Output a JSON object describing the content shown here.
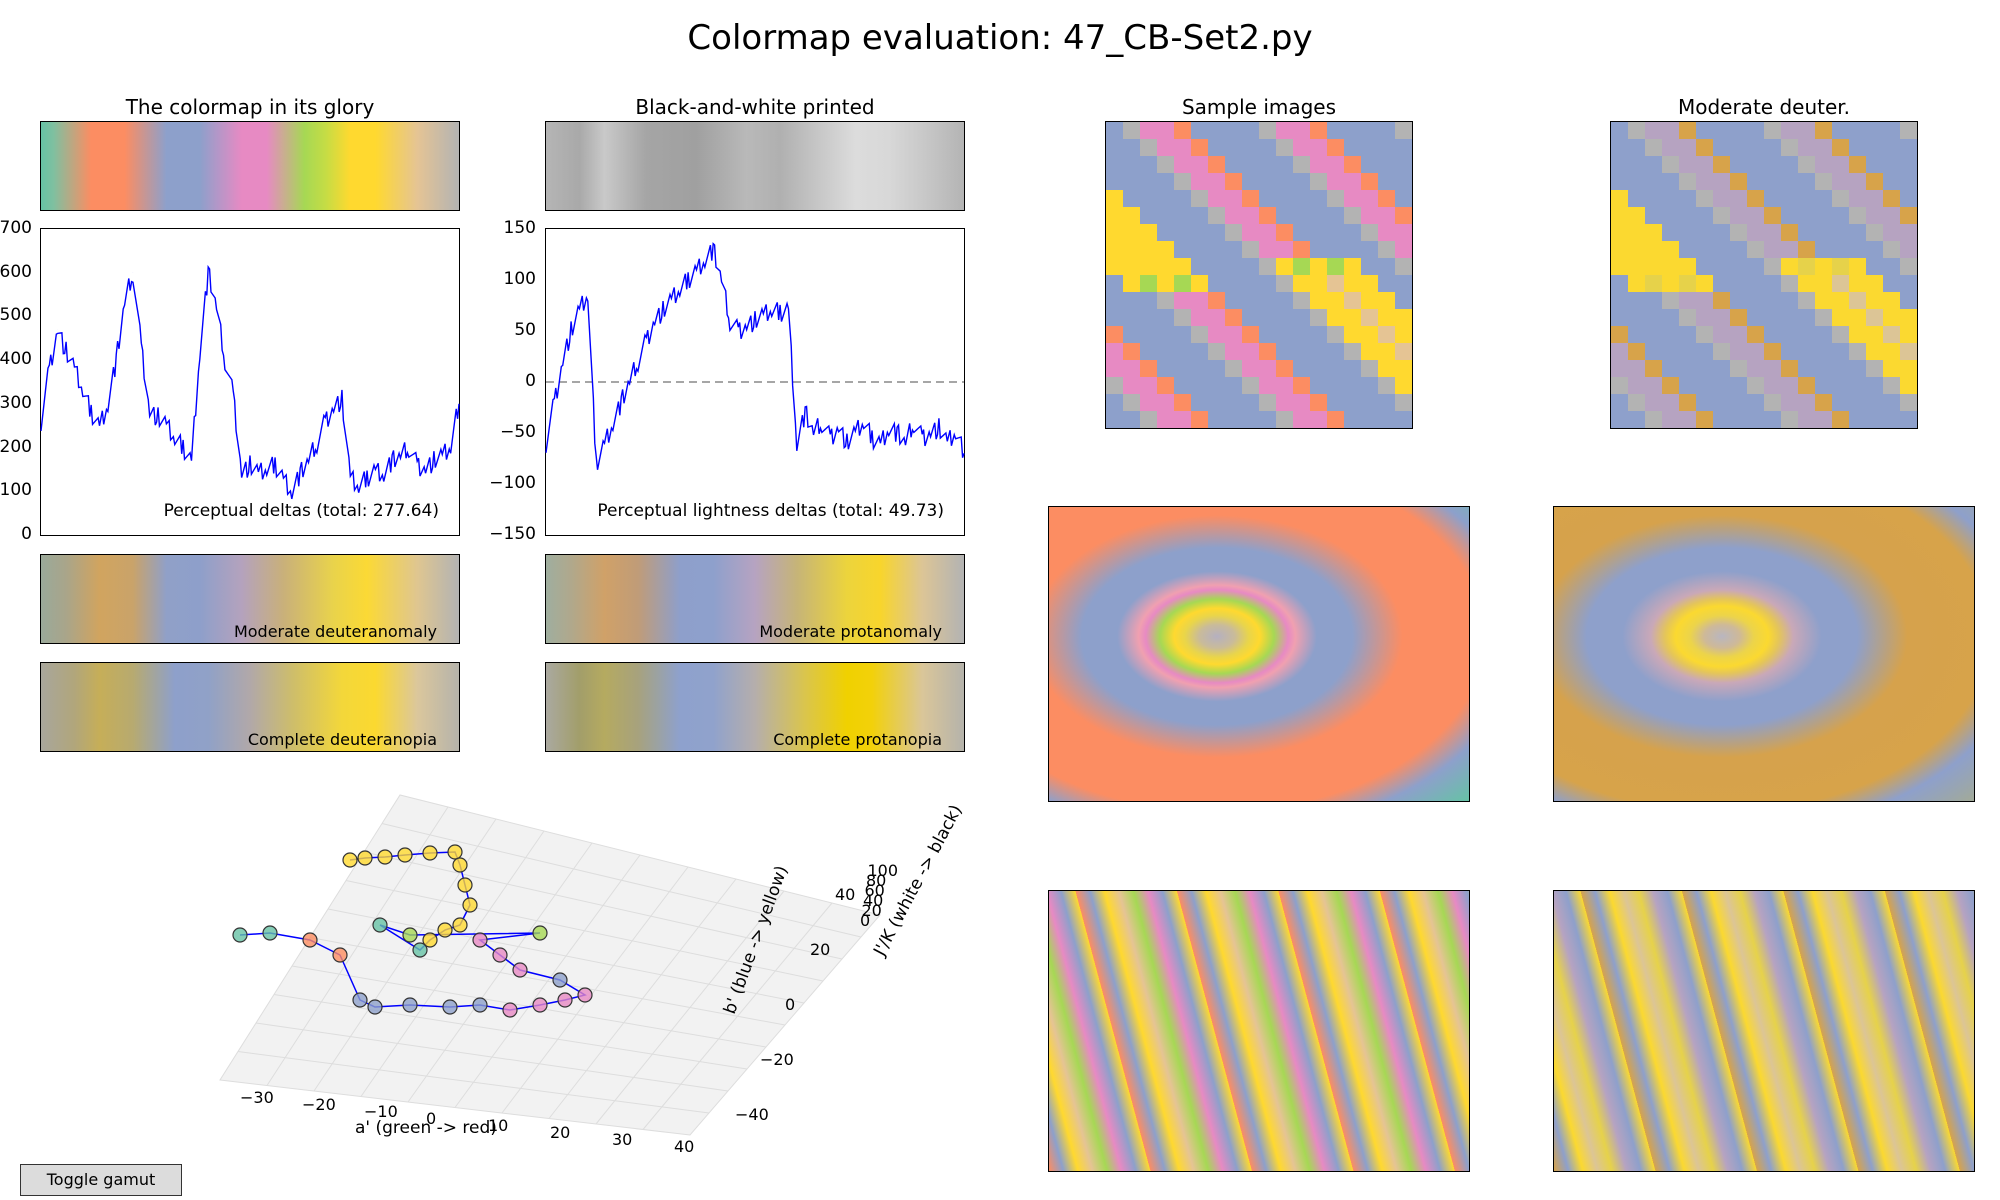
{
  "figure_title": "Colormap evaluation: 47_CB-Set2.py",
  "panels": {
    "glory": "The colormap in its glory",
    "bw": "Black-and-white printed",
    "samples": "Sample images",
    "deuter": "Moderate deuter."
  },
  "bars": {
    "mod_deuteranomaly": "Moderate deuteranomaly",
    "mod_protanomaly": "Moderate protanomaly",
    "complete_deuteranopia": "Complete deuteranopia",
    "complete_protanopia": "Complete protanopia"
  },
  "toggle_button": "Toggle gamut",
  "colors": {
    "line": "#0000ff",
    "colormap": [
      "#66c2a5",
      "#fc8d62",
      "#8da0cb",
      "#e78ac3",
      "#a6d854",
      "#ffd92f",
      "#e5c494",
      "#b3b3b3"
    ]
  },
  "chart_data": [
    {
      "type": "line",
      "name": "perceptual_deltas",
      "annotation": "Perceptual deltas (total: 277.64)",
      "ylim": [
        0,
        700
      ],
      "yticks": [
        "0",
        "100",
        "200",
        "300",
        "400",
        "500",
        "600",
        "700"
      ],
      "x": [
        0,
        0.02,
        0.04,
        0.06,
        0.08,
        0.1,
        0.12,
        0.14,
        0.16,
        0.18,
        0.2,
        0.22,
        0.24,
        0.26,
        0.28,
        0.3,
        0.32,
        0.34,
        0.36,
        0.38,
        0.4,
        0.42,
        0.44,
        0.46,
        0.48,
        0.5,
        0.52,
        0.54,
        0.56,
        0.58,
        0.6,
        0.62,
        0.64,
        0.66,
        0.68,
        0.7,
        0.72,
        0.74,
        0.76,
        0.78,
        0.8,
        0.82,
        0.84,
        0.86,
        0.88,
        0.9,
        0.92,
        0.94,
        0.96,
        0.98,
        1.0
      ],
      "y": [
        260,
        380,
        470,
        420,
        380,
        330,
        280,
        250,
        300,
        400,
        530,
        600,
        430,
        280,
        270,
        250,
        220,
        200,
        170,
        420,
        600,
        520,
        400,
        320,
        140,
        160,
        140,
        150,
        160,
        130,
        100,
        140,
        170,
        210,
        260,
        290,
        310,
        130,
        110,
        130,
        150,
        140,
        170,
        180,
        200,
        160,
        150,
        170,
        180,
        200,
        300
      ]
    },
    {
      "type": "line",
      "name": "perceptual_lightness_deltas",
      "annotation": "Perceptual lightness deltas (total: 49.73)",
      "ylim": [
        -150,
        150
      ],
      "yticks": [
        "−150",
        "−100",
        "−50",
        "0",
        "50",
        "100",
        "150"
      ],
      "x": [
        0,
        0.02,
        0.04,
        0.06,
        0.08,
        0.1,
        0.12,
        0.14,
        0.16,
        0.18,
        0.2,
        0.22,
        0.24,
        0.26,
        0.28,
        0.3,
        0.32,
        0.34,
        0.36,
        0.38,
        0.4,
        0.42,
        0.44,
        0.46,
        0.48,
        0.5,
        0.52,
        0.54,
        0.56,
        0.58,
        0.6,
        0.62,
        0.64,
        0.66,
        0.68,
        0.7,
        0.72,
        0.74,
        0.76,
        0.78,
        0.8,
        0.82,
        0.84,
        0.86,
        0.88,
        0.9,
        0.92,
        0.94,
        0.96,
        0.98,
        1.0
      ],
      "y": [
        -60,
        -20,
        20,
        50,
        70,
        85,
        -80,
        -60,
        -40,
        -20,
        0,
        20,
        40,
        60,
        70,
        80,
        90,
        100,
        110,
        120,
        130,
        100,
        60,
        50,
        55,
        60,
        65,
        70,
        68,
        72,
        -60,
        -30,
        -50,
        -40,
        -55,
        -45,
        -60,
        -50,
        -40,
        -55,
        -60,
        -45,
        -50,
        -60,
        -40,
        -55,
        -50,
        -45,
        -60,
        -50,
        -70
      ]
    },
    {
      "type": "scatter",
      "name": "colormap_3d_path",
      "xlabel": "a' (green -> red)",
      "ylabel": "b' (blue -> yellow)",
      "zlabel": "J'/K (white -> black)",
      "x_ticks": [
        "−30",
        "−20",
        "−10",
        "0",
        "10",
        "20",
        "30",
        "40"
      ],
      "y_ticks": [
        "−40",
        "−20",
        "0",
        "20",
        "40"
      ],
      "z_ticks": [
        "0",
        "20",
        "40",
        "60",
        "80",
        "100"
      ]
    }
  ]
}
